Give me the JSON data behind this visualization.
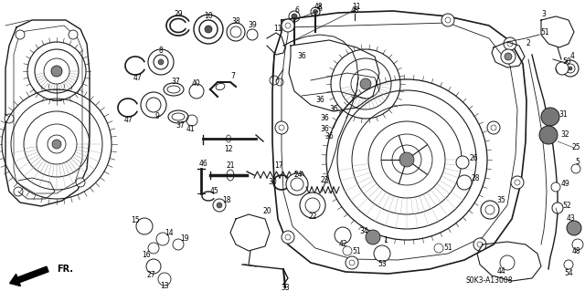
{
  "bg_color": "#ffffff",
  "diagram_code": "S0K3-A13008",
  "direction_label": "FR.",
  "fig_width": 6.4,
  "fig_height": 3.19,
  "dpi": 100,
  "line_color": "#1a1a1a",
  "line_width": 0.6
}
